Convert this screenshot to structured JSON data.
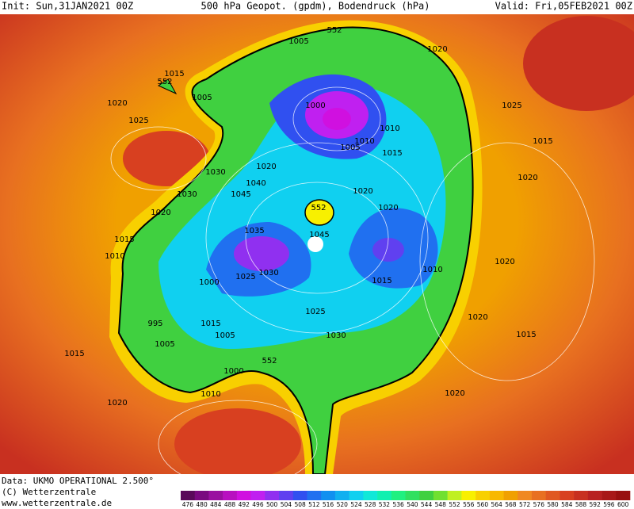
{
  "header": {
    "init": "Init: Sun,31JAN2021 00Z",
    "title": "500 hPa Geopot. (gpdm), Bodendruck (hPa)",
    "valid": "Valid: Fri,05FEB2021 00Z"
  },
  "map": {
    "isobar_labels": [
      "552",
      "1005",
      "1020",
      "1015",
      "552",
      "1005",
      "1000",
      "1020",
      "1025",
      "1025",
      "1010",
      "1010",
      "1005",
      "1015",
      "1015",
      "1030",
      "1020",
      "1040",
      "1020",
      "1045",
      "1030",
      "1020",
      "552",
      "1020",
      "1020",
      "1035",
      "1045",
      "1015",
      "1010",
      "1020",
      "1010",
      "1030",
      "1025",
      "1000",
      "1015",
      "1025",
      "1020",
      "995",
      "1015",
      "1005",
      "1030",
      "1015",
      "1005",
      "1015",
      "552",
      "1000",
      "1010",
      "1020",
      "1020"
    ]
  },
  "footer": {
    "data": "Data: UKMO OPERATIONAL 2.500°",
    "copyright": "(C) Wetterzentrale",
    "url": "www.wetterzentrale.de"
  },
  "scale": {
    "levels": [
      476,
      480,
      484,
      488,
      492,
      496,
      500,
      504,
      508,
      512,
      516,
      520,
      524,
      528,
      532,
      536,
      540,
      544,
      548,
      552,
      556,
      560,
      564,
      568,
      572,
      576,
      580,
      584,
      588,
      592,
      596,
      600
    ],
    "colors": [
      "#5a0a5a",
      "#7a0a80",
      "#9a10a0",
      "#b810c0",
      "#d010e0",
      "#c020f0",
      "#9030f0",
      "#6040f0",
      "#3050f0",
      "#2070f0",
      "#1090f0",
      "#10b0f0",
      "#10d0f0",
      "#10e8d8",
      "#10f0b0",
      "#20f080",
      "#30e060",
      "#40d040",
      "#70e030",
      "#c0f020",
      "#f8f000",
      "#f8d000",
      "#f8b800",
      "#f0a000",
      "#f08820",
      "#e87020",
      "#e05820",
      "#d84020",
      "#c83020",
      "#b82020",
      "#a81818",
      "#981010"
    ]
  }
}
